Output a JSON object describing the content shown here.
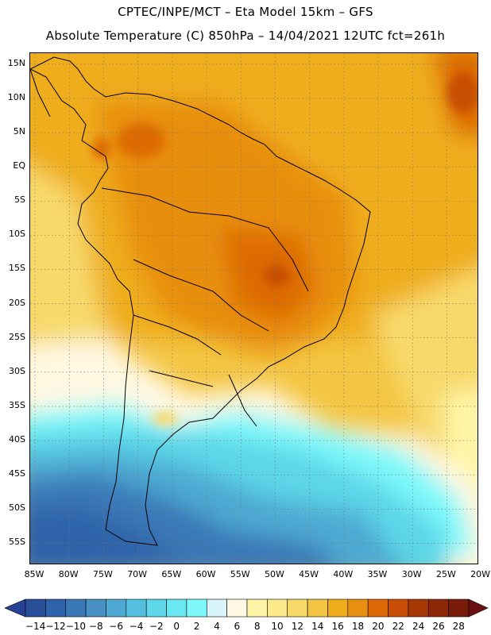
{
  "header": {
    "line1": "CPTEC/INPE/MCT –  Eta Model 15km – GFS",
    "line2": "Absolute Temperature (C) 850hPa – 14/04/2021 12UTC fct=261h"
  },
  "map": {
    "lat_labels": [
      "15N",
      "10N",
      "5N",
      "EQ",
      "5S",
      "10S",
      "15S",
      "20S",
      "25S",
      "30S",
      "35S",
      "40S",
      "45S",
      "50S",
      "55S"
    ],
    "lat_values": [
      15,
      10,
      5,
      0,
      -5,
      -10,
      -15,
      -20,
      -25,
      -30,
      -35,
      -40,
      -45,
      -50,
      -55
    ],
    "lon_labels": [
      "85W",
      "80W",
      "75W",
      "70W",
      "65W",
      "60W",
      "55W",
      "50W",
      "45W",
      "40W",
      "35W",
      "30W",
      "25W",
      "20W"
    ],
    "lon_values": [
      -85,
      -80,
      -75,
      -70,
      -65,
      -60,
      -55,
      -50,
      -45,
      -40,
      -35,
      -30,
      -25,
      -20
    ],
    "lon_range": [
      -85.7,
      -20.3
    ],
    "lat_range": [
      -58.2,
      16.6
    ]
  },
  "colorbar": {
    "labels": [
      "-14",
      "-12",
      "-10",
      "-8",
      "-6",
      "-4",
      "-2",
      "0",
      "2",
      "4",
      "6",
      "8",
      "10",
      "12",
      "14",
      "16",
      "18",
      "20",
      "22",
      "24",
      "26",
      "28"
    ],
    "colors": [
      "#2a4f99",
      "#2f63a9",
      "#3a78b8",
      "#4690c6",
      "#4ea9d2",
      "#52c0de",
      "#5cd6e8",
      "#6ae8f2",
      "#7cf8fa",
      "#d8f4fb",
      "#fff8e2",
      "#fff5a6",
      "#fbe98a",
      "#f7d96a",
      "#f3c542",
      "#efad1c",
      "#e88e10",
      "#dd6a06",
      "#c74e04",
      "#a53805",
      "#8a2807",
      "#7a1c0a"
    ],
    "under_color": "#264196",
    "over_color": "#6b1012"
  },
  "legend": {
    "labels_text": "-14 -12 -10 -8 -6 -4 -2 0 2 4 6 8 10 12 14 16 18 20 22 24 26 28"
  }
}
